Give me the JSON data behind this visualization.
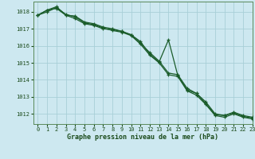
{
  "title": "Graphe pression niveau de la mer (hPa)",
  "background_color": "#cde8f0",
  "grid_color": "#a8cfd8",
  "line_color": "#1a5c2a",
  "xlim": [
    -0.5,
    23
  ],
  "ylim": [
    1011.4,
    1018.6
  ],
  "yticks": [
    1012,
    1013,
    1014,
    1015,
    1016,
    1017,
    1018
  ],
  "xticks": [
    0,
    1,
    2,
    3,
    4,
    5,
    6,
    7,
    8,
    9,
    10,
    11,
    12,
    13,
    14,
    15,
    16,
    17,
    18,
    19,
    20,
    21,
    22,
    23
  ],
  "series1": [
    1017.8,
    1018.1,
    1018.2,
    1017.8,
    1017.75,
    1017.4,
    1017.3,
    1017.1,
    1017.0,
    1016.85,
    1016.65,
    1016.25,
    1015.5,
    1015.05,
    1016.35,
    1014.25,
    1013.4,
    1013.2,
    1012.6,
    1011.95,
    1011.9,
    1012.05,
    1011.85,
    1011.75
  ],
  "series2": [
    1017.8,
    1018.0,
    1018.25,
    1017.85,
    1017.7,
    1017.35,
    1017.25,
    1017.05,
    1016.9,
    1016.8,
    1016.6,
    1016.1,
    1015.45,
    1015.0,
    1014.3,
    1014.2,
    1013.35,
    1013.1,
    1012.55,
    1011.9,
    1011.8,
    1012.0,
    1011.8,
    1011.7
  ],
  "series3": [
    1017.8,
    1018.1,
    1018.3,
    1017.8,
    1017.6,
    1017.3,
    1017.2,
    1017.0,
    1016.95,
    1016.85,
    1016.65,
    1016.15,
    1015.6,
    1015.1,
    1014.4,
    1014.3,
    1013.5,
    1013.2,
    1012.7,
    1012.0,
    1011.9,
    1012.1,
    1011.9,
    1011.8
  ]
}
